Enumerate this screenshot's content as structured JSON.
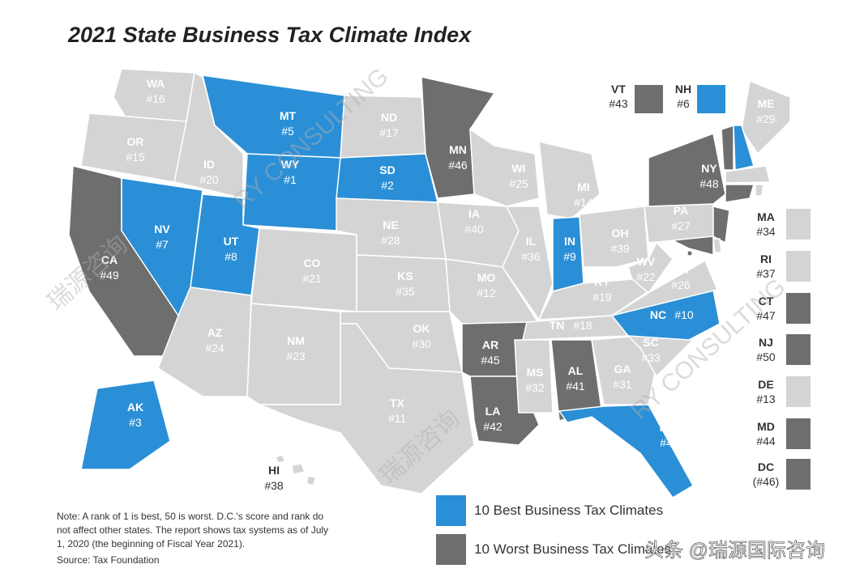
{
  "title": "2021 State Business Tax Climate Index",
  "states": [
    {
      "abbr": "WA",
      "rank": "#16",
      "color": "#d4d4d4"
    },
    {
      "abbr": "OR",
      "rank": "#15",
      "color": "#d4d4d4"
    },
    {
      "abbr": "CA",
      "rank": "#49",
      "color": "#6e6e6e"
    },
    {
      "abbr": "NV",
      "rank": "#7",
      "color": "#2a8fd6"
    },
    {
      "abbr": "ID",
      "rank": "#20",
      "color": "#d4d4d4"
    },
    {
      "abbr": "MT",
      "rank": "#5",
      "color": "#2a8fd6"
    },
    {
      "abbr": "WY",
      "rank": "#1",
      "color": "#2a8fd6"
    },
    {
      "abbr": "UT",
      "rank": "#8",
      "color": "#2a8fd6"
    },
    {
      "abbr": "AZ",
      "rank": "#24",
      "color": "#d4d4d4"
    },
    {
      "abbr": "CO",
      "rank": "#21",
      "color": "#d4d4d4"
    },
    {
      "abbr": "NM",
      "rank": "#23",
      "color": "#d4d4d4"
    },
    {
      "abbr": "ND",
      "rank": "#17",
      "color": "#d4d4d4"
    },
    {
      "abbr": "SD",
      "rank": "#2",
      "color": "#2a8fd6"
    },
    {
      "abbr": "NE",
      "rank": "#28",
      "color": "#d4d4d4"
    },
    {
      "abbr": "KS",
      "rank": "#35",
      "color": "#d4d4d4"
    },
    {
      "abbr": "OK",
      "rank": "#30",
      "color": "#d4d4d4"
    },
    {
      "abbr": "TX",
      "rank": "#11",
      "color": "#d4d4d4"
    },
    {
      "abbr": "MN",
      "rank": "#46",
      "color": "#6e6e6e"
    },
    {
      "abbr": "IA",
      "rank": "#40",
      "color": "#d4d4d4"
    },
    {
      "abbr": "MO",
      "rank": "#12",
      "color": "#d4d4d4"
    },
    {
      "abbr": "AR",
      "rank": "#45",
      "color": "#6e6e6e"
    },
    {
      "abbr": "LA",
      "rank": "#42",
      "color": "#6e6e6e"
    },
    {
      "abbr": "WI",
      "rank": "#25",
      "color": "#d4d4d4"
    },
    {
      "abbr": "MI",
      "rank": "#14",
      "color": "#d4d4d4"
    },
    {
      "abbr": "IL",
      "rank": "#36",
      "color": "#d4d4d4"
    },
    {
      "abbr": "IN",
      "rank": "#9",
      "color": "#2a8fd6"
    },
    {
      "abbr": "OH",
      "rank": "#39",
      "color": "#d4d4d4"
    },
    {
      "abbr": "KY",
      "rank": "#19",
      "color": "#d4d4d4"
    },
    {
      "abbr": "TN",
      "rank": "#18",
      "color": "#d4d4d4"
    },
    {
      "abbr": "MS",
      "rank": "#32",
      "color": "#d4d4d4"
    },
    {
      "abbr": "AL",
      "rank": "#41",
      "color": "#6e6e6e"
    },
    {
      "abbr": "GA",
      "rank": "#31",
      "color": "#d4d4d4"
    },
    {
      "abbr": "FL",
      "rank": "#4",
      "color": "#2a8fd6"
    },
    {
      "abbr": "SC",
      "rank": "#33",
      "color": "#d4d4d4"
    },
    {
      "abbr": "NC",
      "rank": "#10",
      "color": "#2a8fd6"
    },
    {
      "abbr": "VA",
      "rank": "#26",
      "color": "#d4d4d4"
    },
    {
      "abbr": "WV",
      "rank": "#22",
      "color": "#d4d4d4"
    },
    {
      "abbr": "PA",
      "rank": "#27",
      "color": "#d4d4d4"
    },
    {
      "abbr": "NY",
      "rank": "#48",
      "color": "#6e6e6e"
    },
    {
      "abbr": "ME",
      "rank": "#29",
      "color": "#d4d4d4"
    },
    {
      "abbr": "AK",
      "rank": "#3",
      "color": "#2a8fd6"
    },
    {
      "abbr": "HI",
      "rank": "#38",
      "color": "#d4d4d4"
    }
  ],
  "insets": [
    {
      "abbr": "VT",
      "rank": "#43",
      "color": "#6e6e6e"
    },
    {
      "abbr": "NH",
      "rank": "#6",
      "color": "#2a8fd6"
    },
    {
      "abbr": "MA",
      "rank": "#34",
      "color": "#d4d4d4"
    },
    {
      "abbr": "RI",
      "rank": "#37",
      "color": "#d4d4d4"
    },
    {
      "abbr": "CT",
      "rank": "#47",
      "color": "#6e6e6e"
    },
    {
      "abbr": "NJ",
      "rank": "#50",
      "color": "#6e6e6e"
    },
    {
      "abbr": "DE",
      "rank": "#13",
      "color": "#d4d4d4"
    },
    {
      "abbr": "MD",
      "rank": "#44",
      "color": "#6e6e6e"
    },
    {
      "abbr": "DC",
      "rank": "(#46)",
      "color": "#6e6e6e"
    }
  ],
  "legend": [
    {
      "label": "10 Best Business Tax Climates",
      "color": "#2a8fd6"
    },
    {
      "label": "10 Worst Business Tax Climates",
      "color": "#6e6e6e"
    }
  ],
  "note": [
    "Note: A rank of 1 is best, 50 is worst. D.C.'s score and rank do",
    "not affect other states. The report shows tax systems as of July",
    "1, 2020 (the beginning of Fiscal Year 2021)."
  ],
  "source": "Source: Tax Foundation",
  "watermarks": [
    "RY CONSULTING",
    "瑞源咨询",
    "RY CONSULTING",
    "瑞源咨询"
  ],
  "credit": "头条 @瑞源国际咨询"
}
